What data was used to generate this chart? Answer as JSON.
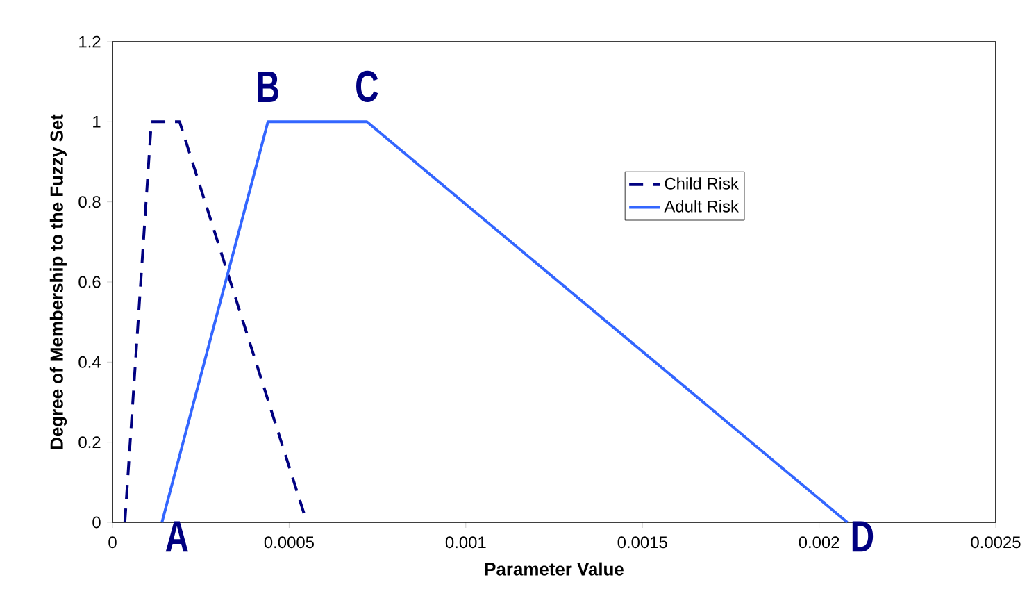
{
  "chart_data": {
    "type": "line",
    "xlabel": "Parameter Value",
    "ylabel": "Degree of Membership to the Fuzzy Set",
    "xlim": [
      0,
      0.0025
    ],
    "xticks": [
      0,
      0.0005,
      0.001,
      0.0015,
      0.002,
      0.0025
    ],
    "ylim": [
      0,
      1.2
    ],
    "yticks": [
      0,
      0.2,
      0.4,
      0.6,
      0.8,
      1,
      1.2
    ],
    "legend": "right",
    "marker": "none",
    "series": [
      {
        "name": "Child Risk",
        "color": "#000080",
        "line_style": "dashed",
        "x": [
          3.5e-05,
          0.00011,
          0.00019,
          0.00055
        ],
        "values": [
          0,
          1,
          1,
          0
        ]
      },
      {
        "name": "Adult Risk",
        "color": "#3366ff",
        "line_style": "solid",
        "x": [
          0.00014,
          0.00044,
          0.00072,
          0.00208
        ],
        "values": [
          0,
          1,
          1,
          0
        ]
      }
    ],
    "annotations": [
      {
        "text": "A",
        "x": 0.00014,
        "y": 0
      },
      {
        "text": "B",
        "x": 0.00044,
        "y": 1
      },
      {
        "text": "C",
        "x": 0.00072,
        "y": 1
      },
      {
        "text": "D",
        "x": 0.00208,
        "y": 0
      }
    ]
  }
}
